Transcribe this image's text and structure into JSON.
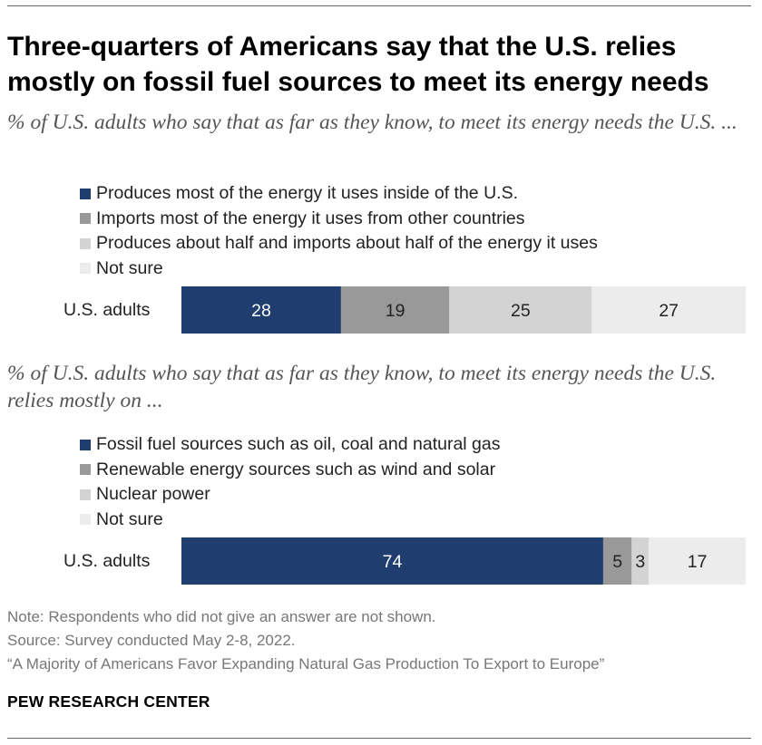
{
  "title": "Three-quarters of Americans say that the U.S. relies mostly on fossil fuel sources to meet its energy needs",
  "colors": {
    "dark_blue": "#1f3d6e",
    "mid_gray": "#999999",
    "light_gray": "#d3d3d3",
    "lightest_gray": "#ececec",
    "label_light": "#ffffff",
    "label_dark": "#222222"
  },
  "chart_data": [
    {
      "type": "bar",
      "orientation": "horizontal-stacked",
      "subtitle": "% of U.S. adults who say that as far as they know, to meet its energy needs the U.S. ...",
      "categories": [
        "U.S. adults"
      ],
      "xlim": [
        0,
        100
      ],
      "legend_position": "top-left",
      "series": [
        {
          "name": "Produces most of the energy it uses inside of the U.S.",
          "values": [
            28
          ],
          "label": "28",
          "color": "#1f3d6e"
        },
        {
          "name": "Imports most of the energy it uses from other countries",
          "values": [
            19
          ],
          "label": "19",
          "color": "#999999"
        },
        {
          "name": "Produces about half and imports about half of the energy it uses",
          "values": [
            25
          ],
          "label": "25",
          "color": "#d3d3d3"
        },
        {
          "name": "Not sure",
          "values": [
            27
          ],
          "label": "27",
          "color": "#ececec"
        }
      ]
    },
    {
      "type": "bar",
      "orientation": "horizontal-stacked",
      "subtitle": "% of U.S. adults who say that as far as they know, to meet its energy needs the U.S. relies mostly on ...",
      "categories": [
        "U.S. adults"
      ],
      "xlim": [
        0,
        100
      ],
      "legend_position": "top-left",
      "series": [
        {
          "name": "Fossil fuel sources such as oil, coal and natural gas",
          "values": [
            74
          ],
          "label": "74",
          "color": "#1f3d6e"
        },
        {
          "name": "Renewable energy sources such as wind and solar",
          "values": [
            5
          ],
          "label": "5",
          "color": "#999999"
        },
        {
          "name": "Nuclear power",
          "values": [
            3
          ],
          "label": "3",
          "color": "#d3d3d3"
        },
        {
          "name": "Not sure",
          "values": [
            17
          ],
          "label": "17",
          "color": "#ececec"
        }
      ]
    }
  ],
  "notes": {
    "note": "Note: Respondents who did not give an answer are not shown.",
    "source": "Source: Survey conducted May 2-8, 2022.",
    "report": "“A Majority of Americans Favor Expanding Natural Gas Production To Export to Europe”"
  },
  "brand": "PEW RESEARCH CENTER"
}
